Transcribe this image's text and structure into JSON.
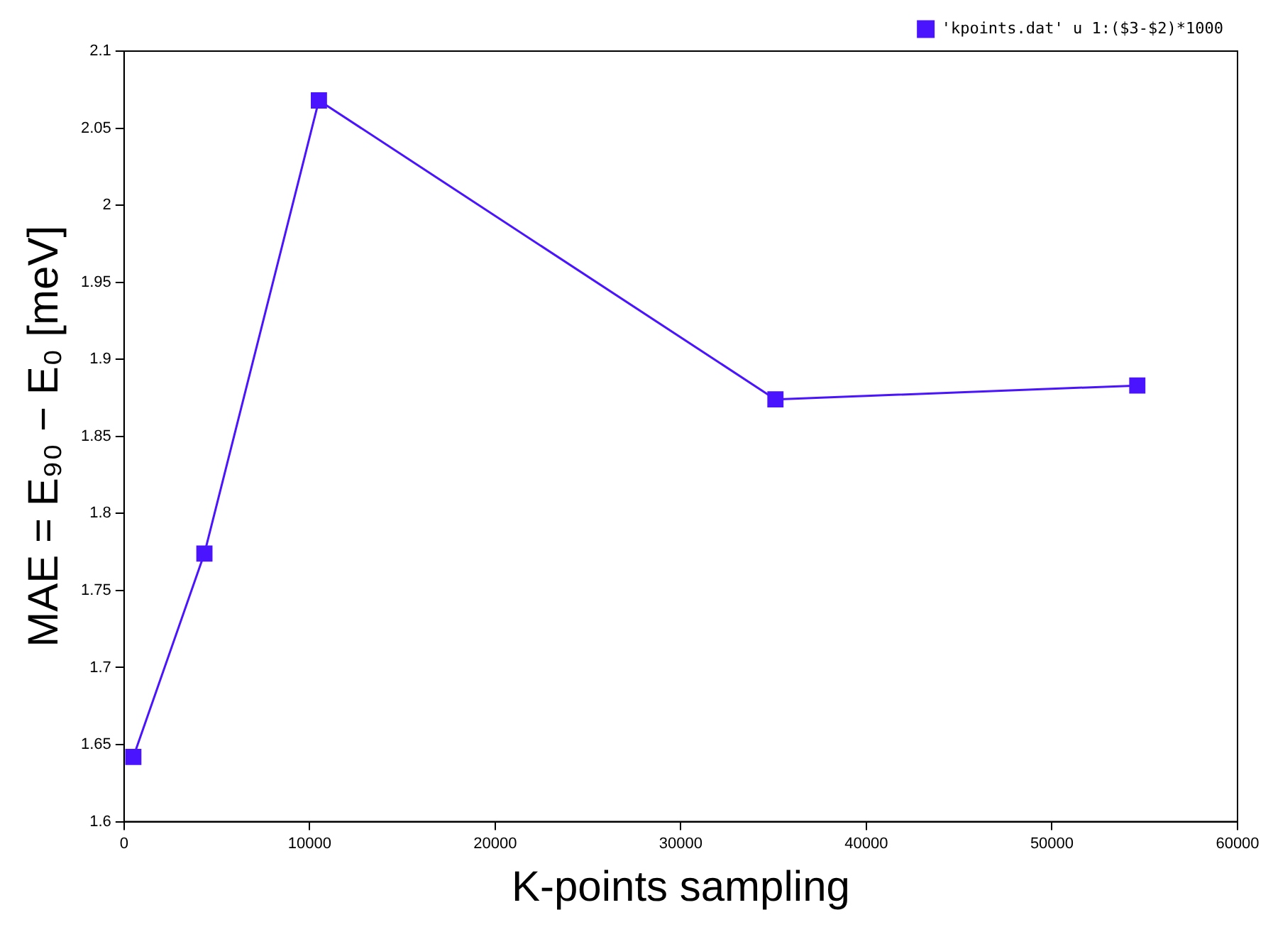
{
  "chart_data": {
    "type": "line",
    "xlabel": "K-points sampling",
    "ylabel": "MAE = E₉₀ − E₀ [meV]",
    "x": [
      500,
      4330,
      10500,
      35100,
      54600
    ],
    "series": [
      {
        "name": "'kpoints.dat' u 1:($3-$2)*1000",
        "color": "#4a14ff",
        "values": [
          1.642,
          1.774,
          2.068,
          1.874,
          1.883
        ]
      }
    ],
    "xlim": [
      0,
      60000
    ],
    "xticks": [
      0,
      10000,
      20000,
      30000,
      40000,
      50000,
      60000
    ],
    "ylim": [
      1.6,
      2.1
    ],
    "yticks": [
      1.6,
      1.65,
      1.7,
      1.75,
      1.8,
      1.85,
      1.9,
      1.95,
      2,
      2.05,
      2.1
    ],
    "grid": false,
    "legend": "top right",
    "marker": "square",
    "line_style": "solid"
  }
}
